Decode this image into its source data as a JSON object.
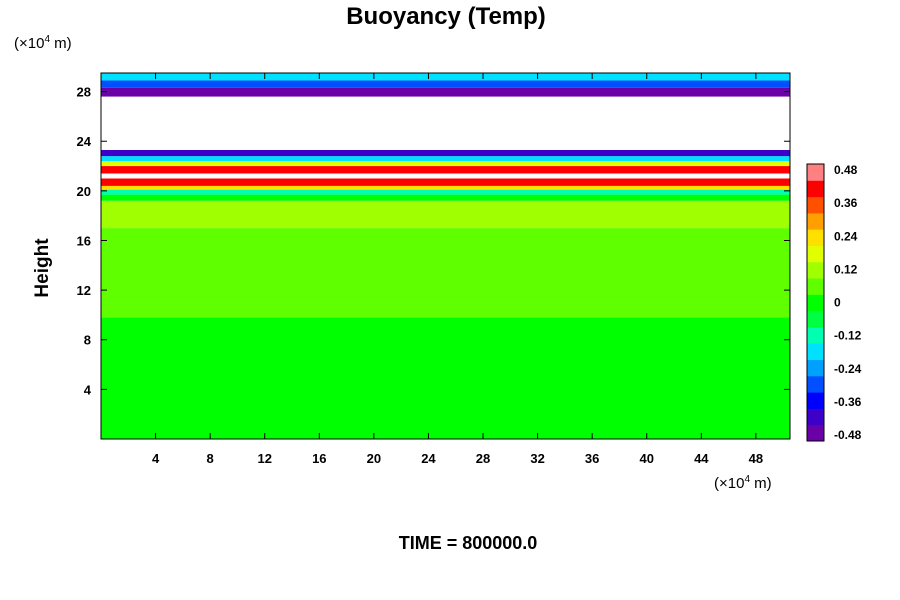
{
  "chart_data": {
    "type": "heatmap",
    "title": "Buoyancy (Temp)",
    "ylabel": "Height",
    "xunit_prefix": "(×10",
    "xunit_exp": "4",
    "xunit_suffix": " m)",
    "yunit_prefix": "(×10",
    "yunit_exp": "4",
    "yunit_suffix": " m)",
    "xlim": [
      0,
      50.5
    ],
    "ylim": [
      0,
      29.5
    ],
    "xticks": [
      4,
      8,
      12,
      16,
      20,
      24,
      28,
      32,
      36,
      40,
      44,
      48
    ],
    "yticks": [
      4,
      8,
      12,
      16,
      20,
      24,
      28
    ],
    "colorbar": {
      "ticks": [
        "0.48",
        "0.36",
        "0.24",
        "0.12",
        "0",
        "-0.12",
        "-0.24",
        "-0.36",
        "-0.48"
      ],
      "range": [
        -0.48,
        0.48
      ],
      "colors": [
        "#6a00a8",
        "#3c00c8",
        "#0000ff",
        "#0050ff",
        "#00a0ff",
        "#00e0ff",
        "#00ffb0",
        "#00ff40",
        "#00ff00",
        "#60ff00",
        "#a0ff00",
        "#e0ff00",
        "#ffe000",
        "#ffa000",
        "#ff5000",
        "#ff0000",
        "#ff8080"
      ]
    },
    "layers": [
      {
        "y0": 0,
        "y1": 9.8,
        "value": 0.0
      },
      {
        "y0": 9.8,
        "y1": 11.0,
        "value": 0.03
      },
      {
        "y0": 11.0,
        "y1": 17.0,
        "value": 0.08
      },
      {
        "y0": 17.0,
        "y1": 19.2,
        "value": 0.1
      },
      {
        "y0": 19.2,
        "y1": 19.7,
        "value": 0.02
      },
      {
        "y0": 19.7,
        "y1": 20.1,
        "value": -0.12
      },
      {
        "y0": 20.1,
        "y1": 20.4,
        "value": 0.2
      },
      {
        "y0": 20.4,
        "y1": 21.0,
        "value": 0.38
      },
      {
        "y0": 21.0,
        "y1": 21.4,
        "value": null
      },
      {
        "y0": 21.4,
        "y1": 22.0,
        "value": 0.4
      },
      {
        "y0": 22.0,
        "y1": 22.4,
        "value": 0.15
      },
      {
        "y0": 22.4,
        "y1": 22.8,
        "value": -0.15
      },
      {
        "y0": 22.8,
        "y1": 23.3,
        "value": -0.4
      },
      {
        "y0": 23.3,
        "y1": 27.6,
        "value": null
      },
      {
        "y0": 27.6,
        "y1": 28.3,
        "value": -0.46
      },
      {
        "y0": 28.3,
        "y1": 28.9,
        "value": -0.3
      },
      {
        "y0": 28.9,
        "y1": 29.5,
        "value": -0.18
      }
    ],
    "time_label": "TIME = 800000.0"
  }
}
